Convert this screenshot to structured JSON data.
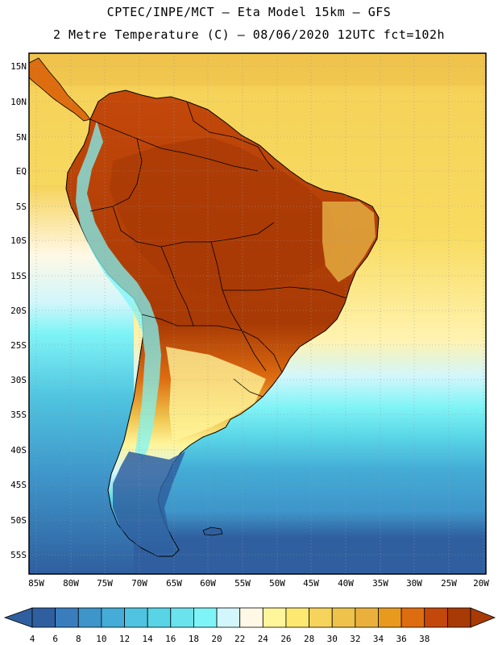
{
  "title_line1": "CPTEC/INPE/MCT —  Eta Model 15km — GFS",
  "title_line2": "2 Metre Temperature (C) — 08/06/2020 12UTC fct=102h",
  "lat_labels": [
    "15N",
    "10N",
    "5N",
    "EQ",
    "5S",
    "10S",
    "15S",
    "20S",
    "25S",
    "30S",
    "35S",
    "40S",
    "45S",
    "50S",
    "55S"
  ],
  "lon_labels": [
    "85W",
    "80W",
    "75W",
    "70W",
    "65W",
    "60W",
    "55W",
    "50W",
    "45W",
    "40W",
    "35W",
    "30W",
    "25W",
    "20W"
  ],
  "colorbar": {
    "ticks": [
      "4",
      "6",
      "8",
      "10",
      "12",
      "14",
      "16",
      "18",
      "20",
      "22",
      "24",
      "26",
      "28",
      "30",
      "32",
      "34",
      "36",
      "38"
    ],
    "colors": [
      "#2f5f9f",
      "#3a7dbd",
      "#3e95c9",
      "#44acd6",
      "#4fc3df",
      "#58d4e6",
      "#6ae3ec",
      "#7ff4f6",
      "#d2f6fb",
      "#fff8e6",
      "#fff59a",
      "#fde872",
      "#f6d35a",
      "#eec24b",
      "#e9b13b",
      "#e89a1f",
      "#de6d10",
      "#c4480a",
      "#a83a05"
    ]
  },
  "palette": {
    "ocean_deep": "#2f5f9f",
    "ocean_mid": "#44acd6",
    "ocean_light": "#7ff4f6",
    "ocean_warm": "#f6d35a",
    "land_hot": "#a83a05",
    "land_warm": "#de6d10"
  }
}
